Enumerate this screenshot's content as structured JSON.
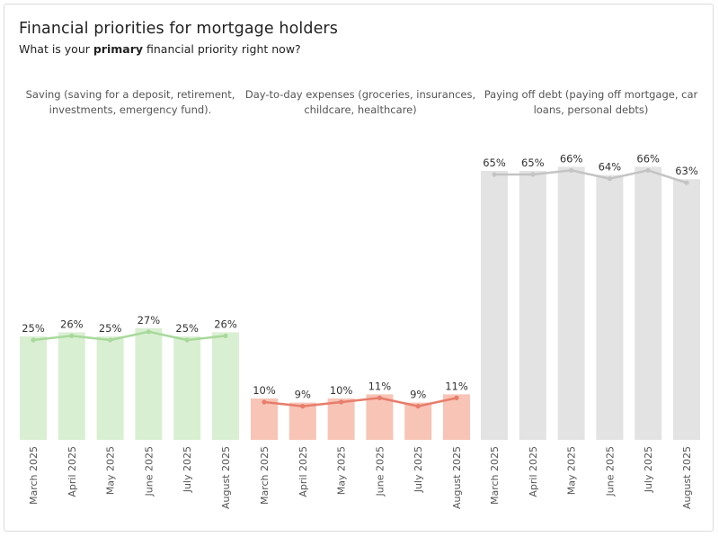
{
  "header": {
    "title": "Financial priorities for mortgage holders",
    "subtitle_prefix": "What is your ",
    "subtitle_bold": "primary",
    "subtitle_suffix": " financial priority right now?"
  },
  "chart_data": {
    "type": "bar",
    "title": "Financial priorities for mortgage holders",
    "subtitle": "What is your primary financial priority right now?",
    "categories": [
      "March 2025",
      "April 2025",
      "May 2025",
      "June 2025",
      "July 2025",
      "August 2025"
    ],
    "ylim": [
      0,
      70
    ],
    "grid": false,
    "panels": [
      {
        "name": "Saving (saving for a deposit, retirement, investments, emergency fund).",
        "label_lines": [
          "Saving (saving for a deposit, retirement,",
          "investments, emergency fund)."
        ],
        "values": [
          25,
          26,
          25,
          27,
          25,
          26
        ],
        "bar_color": "#d9efd2",
        "line_color": "#a8d99a"
      },
      {
        "name": "Day-to-day expenses (groceries, insurances, childcare, healthcare)",
        "label_lines": [
          "Day-to-day expenses (groceries, insurances,",
          "childcare, healthcare)"
        ],
        "values": [
          10,
          9,
          10,
          11,
          9,
          11
        ],
        "bar_color": "#f7c4b6",
        "line_color": "#e87d6b"
      },
      {
        "name": "Paying off debt (paying off mortgage, car loans, personal debts)",
        "label_lines": [
          "Paying off debt (paying off mortgage, car",
          "loans, personal debts)"
        ],
        "values": [
          65,
          65,
          66,
          64,
          66,
          63
        ],
        "bar_color": "#e3e3e3",
        "line_color": "#c4c4c4"
      }
    ],
    "value_suffix": "%"
  }
}
